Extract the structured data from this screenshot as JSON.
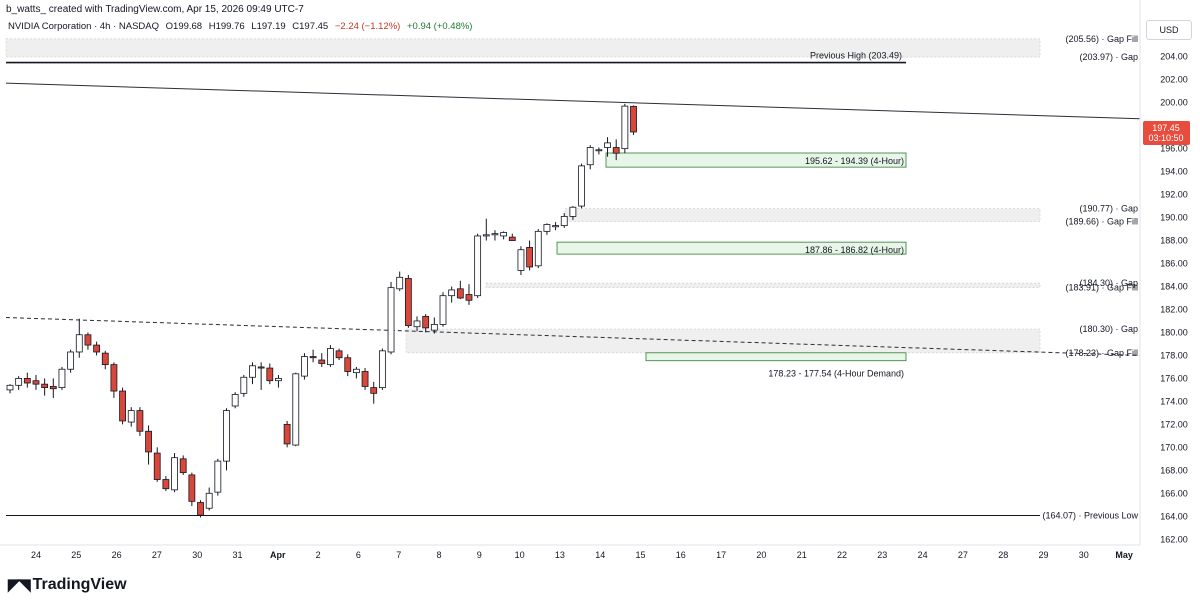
{
  "attribution": "b_watts_ created with TradingView.com, Apr 15, 2026 09:49 UTC-7",
  "legend": {
    "symbol": "NVIDIA Corporation · 4h · NASDAQ",
    "open": "O199.68",
    "high": "H199.76",
    "low": "L197.19",
    "close": "C197.45",
    "change": "−2.24 (−1.12%)",
    "extra": "+0.94 (+0.48%)"
  },
  "currency": "USD",
  "price_badge": {
    "price": "197.45",
    "countdown": "03:10:50",
    "color": "#e74c3c"
  },
  "brand": {
    "name": "TradingView"
  },
  "colors": {
    "up": "#ffffff",
    "down": "#d9473a",
    "wick": "#131722",
    "zone_fill": "#e8f5e9",
    "zone_border": "#2e7d32",
    "gap_fill": "#efefef"
  },
  "chart_data": {
    "type": "candlestick",
    "timeframe": "4h",
    "ylim": [
      161.5,
      206.5
    ],
    "y_ticks": [
      "162.00",
      "164.00",
      "166.00",
      "168.00",
      "170.00",
      "172.00",
      "174.00",
      "176.00",
      "178.00",
      "180.00",
      "182.00",
      "184.00",
      "186.00",
      "188.00",
      "190.00",
      "192.00",
      "194.00",
      "196.00",
      "198.00",
      "200.00",
      "202.00",
      "204.00"
    ],
    "x_ticks": [
      {
        "label": "24",
        "bold": false
      },
      {
        "label": "25",
        "bold": false
      },
      {
        "label": "26",
        "bold": false
      },
      {
        "label": "27",
        "bold": false
      },
      {
        "label": "30",
        "bold": false
      },
      {
        "label": "31",
        "bold": false
      },
      {
        "label": "Apr",
        "bold": true
      },
      {
        "label": "2",
        "bold": false
      },
      {
        "label": "6",
        "bold": false
      },
      {
        "label": "7",
        "bold": false
      },
      {
        "label": "8",
        "bold": false
      },
      {
        "label": "9",
        "bold": false
      },
      {
        "label": "10",
        "bold": false
      },
      {
        "label": "13",
        "bold": false
      },
      {
        "label": "14",
        "bold": false
      },
      {
        "label": "15",
        "bold": false
      },
      {
        "label": "16",
        "bold": false
      },
      {
        "label": "17",
        "bold": false
      },
      {
        "label": "20",
        "bold": false
      },
      {
        "label": "21",
        "bold": false
      },
      {
        "label": "22",
        "bold": false
      },
      {
        "label": "23",
        "bold": false
      },
      {
        "label": "24",
        "bold": false
      },
      {
        "label": "27",
        "bold": false
      },
      {
        "label": "28",
        "bold": false
      },
      {
        "label": "29",
        "bold": false
      },
      {
        "label": "30",
        "bold": false
      },
      {
        "label": "May",
        "bold": true
      }
    ],
    "candles": [
      [
        175.0,
        175.5,
        174.7,
        175.4
      ],
      [
        175.4,
        176.2,
        175.0,
        176.0
      ],
      [
        176.0,
        176.5,
        175.2,
        175.6
      ],
      [
        175.8,
        176.3,
        175.0,
        175.5
      ],
      [
        175.5,
        176.0,
        174.5,
        175.2
      ],
      [
        175.3,
        176.0,
        174.3,
        175.1
      ],
      [
        175.2,
        177.0,
        175.0,
        176.8
      ],
      [
        176.8,
        178.5,
        176.5,
        178.3
      ],
      [
        178.3,
        181.2,
        177.8,
        179.8
      ],
      [
        179.8,
        180.0,
        178.5,
        178.9
      ],
      [
        178.9,
        179.2,
        178.0,
        178.3
      ],
      [
        178.2,
        178.4,
        176.8,
        177.2
      ],
      [
        177.2,
        177.4,
        174.3,
        174.9
      ],
      [
        174.9,
        175.2,
        172.0,
        172.3
      ],
      [
        172.2,
        173.5,
        171.8,
        173.2
      ],
      [
        173.2,
        173.5,
        171.0,
        171.4
      ],
      [
        171.4,
        171.9,
        168.5,
        169.6
      ],
      [
        169.5,
        170.0,
        167.0,
        167.2
      ],
      [
        167.2,
        167.5,
        166.2,
        166.4
      ],
      [
        166.3,
        169.5,
        166.1,
        169.1
      ],
      [
        169.0,
        169.3,
        167.6,
        167.8
      ],
      [
        167.6,
        167.8,
        164.9,
        165.3
      ],
      [
        165.2,
        165.4,
        163.9,
        164.1
      ],
      [
        164.7,
        166.5,
        164.5,
        166.0
      ],
      [
        166.1,
        169.0,
        165.8,
        168.8
      ],
      [
        168.8,
        173.4,
        168.0,
        173.2
      ],
      [
        173.6,
        174.8,
        173.4,
        174.6
      ],
      [
        174.7,
        176.3,
        174.4,
        176.1
      ],
      [
        176.1,
        177.4,
        175.5,
        177.1
      ],
      [
        177.0,
        177.4,
        175.0,
        176.9
      ],
      [
        176.9,
        177.3,
        175.5,
        175.8
      ],
      [
        175.8,
        176.3,
        175.2,
        176.0
      ],
      [
        172.0,
        172.3,
        170.0,
        170.3
      ],
      [
        170.2,
        176.5,
        170.1,
        176.4
      ],
      [
        176.2,
        178.2,
        175.9,
        177.9
      ],
      [
        177.9,
        178.5,
        177.4,
        177.8
      ],
      [
        177.6,
        178.2,
        177.0,
        177.3
      ],
      [
        177.2,
        178.9,
        177.0,
        178.6
      ],
      [
        178.4,
        178.6,
        177.6,
        177.8
      ],
      [
        177.8,
        178.1,
        176.2,
        176.6
      ],
      [
        176.5,
        177.0,
        176.0,
        176.8
      ],
      [
        176.6,
        176.9,
        175.0,
        175.3
      ],
      [
        175.2,
        175.7,
        173.8,
        174.7
      ],
      [
        175.2,
        178.6,
        175.0,
        178.4
      ],
      [
        178.3,
        184.4,
        178.1,
        183.9
      ],
      [
        183.8,
        185.3,
        183.6,
        184.8
      ],
      [
        184.7,
        185.0,
        180.4,
        180.6
      ],
      [
        180.5,
        181.4,
        180.1,
        181.0
      ],
      [
        181.4,
        181.6,
        180.0,
        180.4
      ],
      [
        180.2,
        181.3,
        179.9,
        180.7
      ],
      [
        180.7,
        183.5,
        180.5,
        183.2
      ],
      [
        183.2,
        184.0,
        182.6,
        183.7
      ],
      [
        183.8,
        184.5,
        182.9,
        183.0
      ],
      [
        183.3,
        184.2,
        182.4,
        182.8
      ],
      [
        183.2,
        188.6,
        183.0,
        188.4
      ],
      [
        188.4,
        189.9,
        188.0,
        188.5
      ],
      [
        188.5,
        188.9,
        188.0,
        188.6
      ],
      [
        188.4,
        188.8,
        188.1,
        188.7
      ],
      [
        188.3,
        188.6,
        188.0,
        188.0
      ],
      [
        185.4,
        187.5,
        185.0,
        187.2
      ],
      [
        187.4,
        188.0,
        185.4,
        185.7
      ],
      [
        185.8,
        189.0,
        185.6,
        188.8
      ],
      [
        188.8,
        189.5,
        188.5,
        189.4
      ],
      [
        189.2,
        189.6,
        188.9,
        189.3
      ],
      [
        189.3,
        190.4,
        189.1,
        190.1
      ],
      [
        190.1,
        191.0,
        189.8,
        190.9
      ],
      [
        191.0,
        194.7,
        190.8,
        194.5
      ],
      [
        194.6,
        196.3,
        194.2,
        196.1
      ],
      [
        195.9,
        196.1,
        195.5,
        195.9
      ],
      [
        196.1,
        197.0,
        195.3,
        196.5
      ],
      [
        196.1,
        196.8,
        195.0,
        195.6
      ],
      [
        196.0,
        199.9,
        195.6,
        199.7
      ],
      [
        199.68,
        199.76,
        197.19,
        197.45
      ]
    ],
    "zones": [
      {
        "label": "195.62 - 194.39 (4-Hour)",
        "top": 195.62,
        "bottom": 194.39
      },
      {
        "label": "187.86 - 186.82 (4-Hour)",
        "top": 187.86,
        "bottom": 186.82
      },
      {
        "label": "178.23 - 177.54 (4-Hour Demand)",
        "top": 178.23,
        "bottom": 177.54
      }
    ],
    "gaps": [
      {
        "top": 205.56,
        "bottom": 203.97
      },
      {
        "top": 190.77,
        "bottom": 189.66
      },
      {
        "top": 184.3,
        "bottom": 183.91
      },
      {
        "top": 180.3,
        "bottom": 178.23
      }
    ],
    "level_labels": [
      {
        "text": "(205.56) · Gap Fill",
        "price": 205.56
      },
      {
        "text": "(203.97) · Gap",
        "price": 203.97
      },
      {
        "text": "(190.77) · Gap",
        "price": 190.77
      },
      {
        "text": "(189.66) · Gap Fill",
        "price": 189.66
      },
      {
        "text": "(184.30) · Gap",
        "price": 184.3
      },
      {
        "text": "(183.91) · Gap Fill",
        "price": 183.91
      },
      {
        "text": "(180.30) · Gap",
        "price": 180.3
      },
      {
        "text": "(178.23) · Gap Fill",
        "price": 178.23
      },
      {
        "text": "(164.07) · Previous Low",
        "price": 164.07
      }
    ],
    "previous_high": {
      "label": "Previous High (203.49)",
      "price": 203.49
    },
    "previous_low": 164.07,
    "resistance_trendline": {
      "start_price": 201.7,
      "end_price": 198.6
    },
    "support_trendline": {
      "start_price": 181.3,
      "end_price": 178.0
    }
  }
}
